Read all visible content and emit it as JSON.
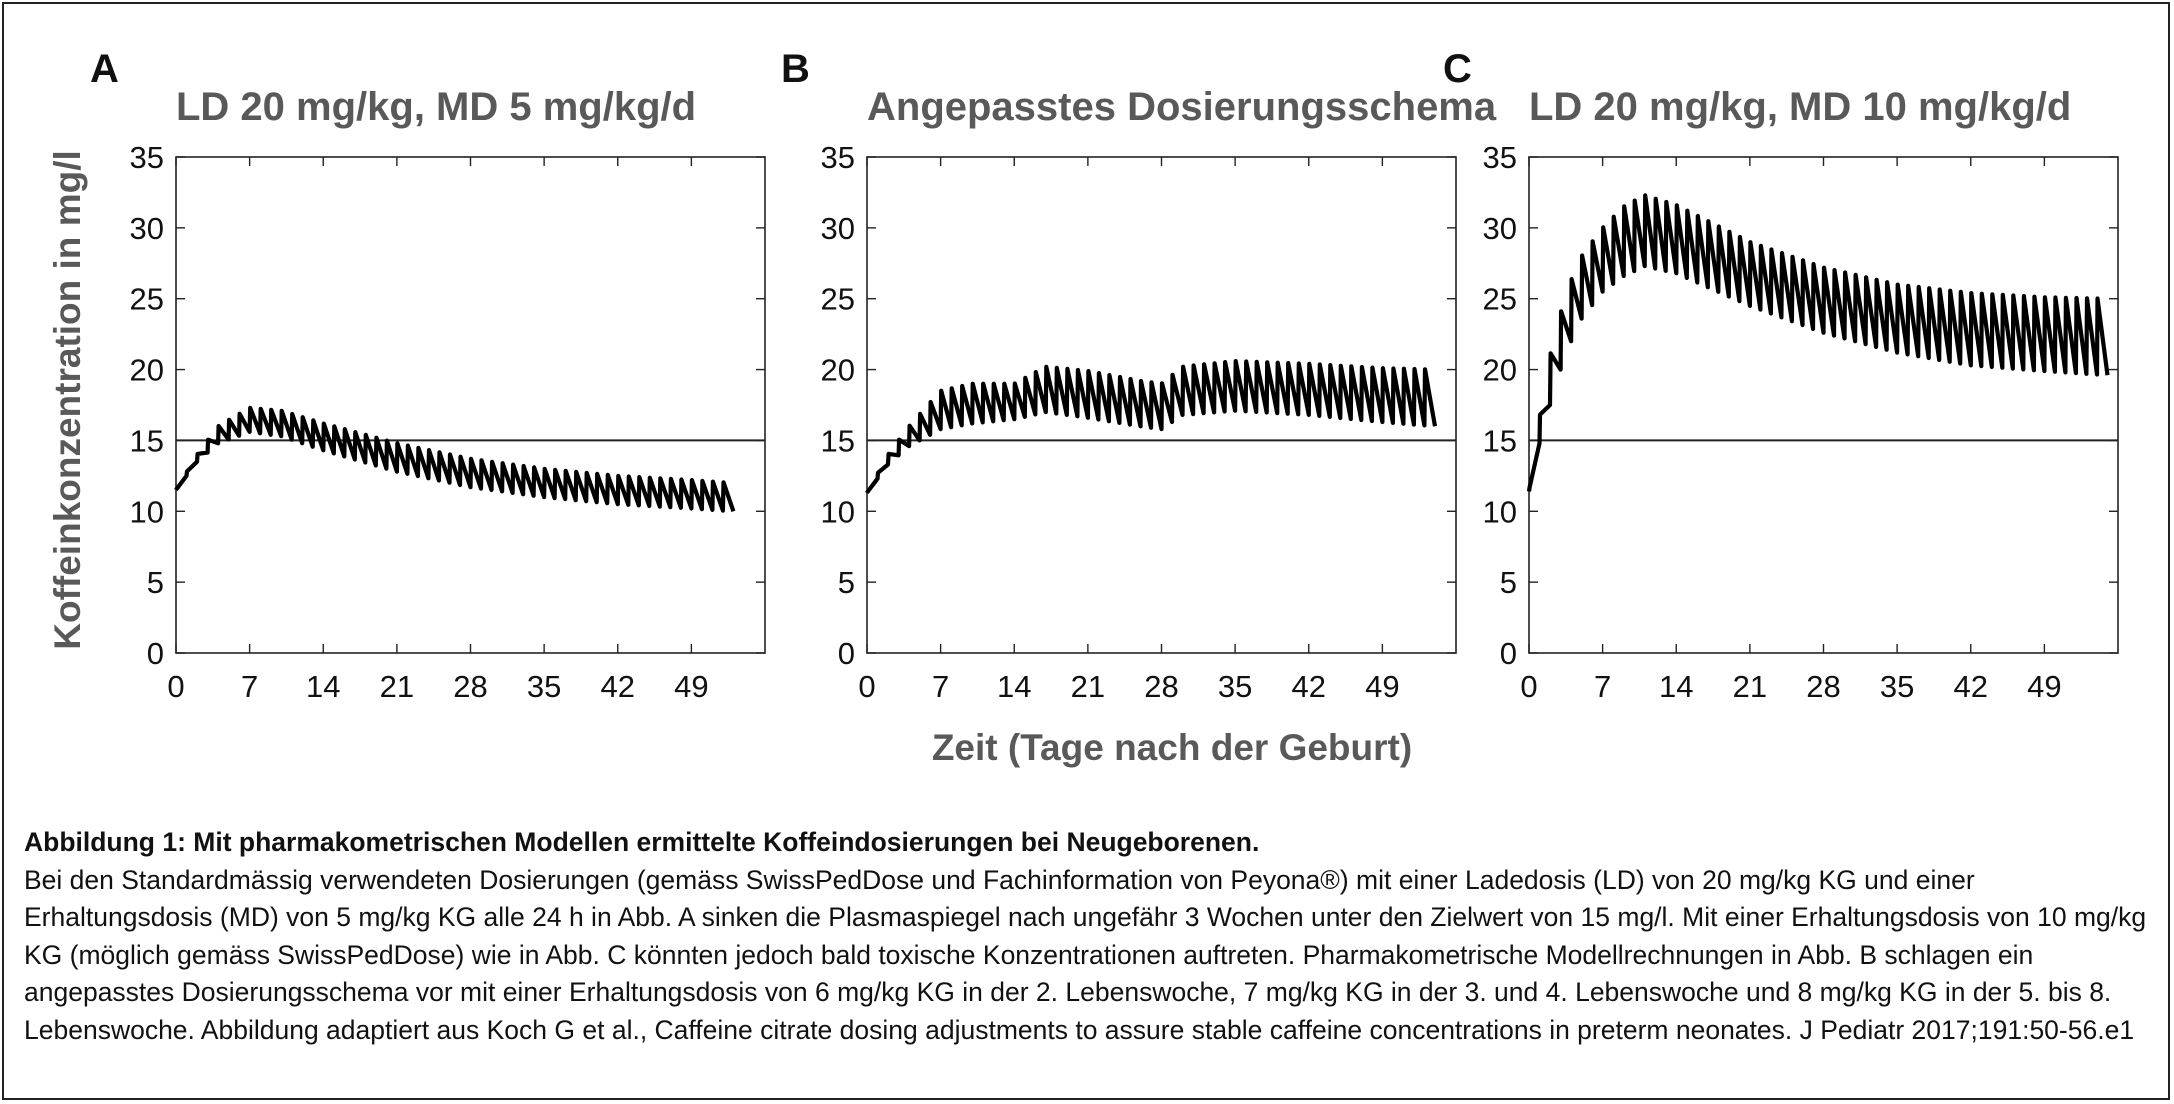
{
  "figure": {
    "ylabel": "Koffeinkonzentration in mg/l",
    "xlabel": "Zeit (Tage nach der Geburt)"
  },
  "caption": {
    "title": "Abbildung 1: Mit pharmakometrischen Modellen ermittelte Koffeindosierungen bei Neugeborenen.",
    "text": "Bei den Standardmässig verwendeten Dosierungen (gemäss SwissPedDose und Fachinformation von Peyona®) mit einer Ladedosis (LD) von 20 mg/kg KG und einer Erhaltungsdosis (MD) von 5 mg/kg KG alle 24 h in Abb. A sinken die Plasmaspiegel nach ungefähr 3 Wochen unter den Zielwert von 15 mg/l. Mit einer Erhaltungsdosis von 10 mg/kg KG (möglich gemäss SwissPedDose) wie in Abb. C könnten jedoch bald toxische Konzentrationen auftreten. Pharmakometrische Modellrechnungen in Abb. B schlagen ein angepasstes Dosierungsschema vor mit einer Erhaltungsdosis von 6 mg/kg KG in der 2. Lebenswoche, 7 mg/kg KG in der 3. und 4. Lebenswoche und 8 mg/kg KG in der 5. bis 8. Lebenswoche. Abbildung adaptiert aus Koch G et al., Caffeine citrate dosing adjustments to assure stable caffeine concentrations in preterm neonates. J Pediatr 2017;191:50-56.e1"
  },
  "chart_data": [
    {
      "type": "line",
      "panel": "A",
      "title": "LD 20 mg/kg, MD 5 mg/kg/d",
      "xlim": [
        0,
        56
      ],
      "ylim": [
        0,
        35
      ],
      "xticks": [
        0,
        7,
        14,
        21,
        28,
        35,
        42,
        49
      ],
      "yticks": [
        0,
        5,
        10,
        15,
        20,
        25,
        30,
        35
      ],
      "reference_line": 15,
      "dose_days": 53,
      "start_level": 11.5,
      "trough_points": [
        [
          0,
          11.5
        ],
        [
          2,
          13.5
        ],
        [
          4,
          14.8
        ],
        [
          7,
          15.6
        ],
        [
          10,
          15.3
        ],
        [
          14,
          14.3
        ],
        [
          21,
          12.8
        ],
        [
          28,
          11.7
        ],
        [
          35,
          11.0
        ],
        [
          42,
          10.5
        ],
        [
          49,
          10.2
        ],
        [
          53,
          10.0
        ]
      ],
      "peak_points": [
        [
          0,
          11.5
        ],
        [
          2,
          14.0
        ],
        [
          4,
          16.0
        ],
        [
          7,
          17.3
        ],
        [
          10,
          17.1
        ],
        [
          14,
          16.2
        ],
        [
          21,
          14.8
        ],
        [
          28,
          13.7
        ],
        [
          35,
          13.0
        ],
        [
          42,
          12.5
        ],
        [
          49,
          12.2
        ],
        [
          53,
          12.0
        ]
      ]
    },
    {
      "type": "line",
      "panel": "B",
      "title": "Angepasstes Dosierungsschema",
      "xlim": [
        0,
        56
      ],
      "ylim": [
        0,
        35
      ],
      "xticks": [
        0,
        7,
        14,
        21,
        28,
        35,
        42,
        49
      ],
      "yticks": [
        0,
        5,
        10,
        15,
        20,
        25,
        30,
        35
      ],
      "reference_line": 15,
      "dose_days": 54,
      "start_level": 11.3,
      "trough_points": [
        [
          0,
          11.3
        ],
        [
          2,
          13.3
        ],
        [
          4,
          14.6
        ],
        [
          7,
          15.8
        ],
        [
          10,
          16.2
        ],
        [
          14,
          16.5
        ],
        [
          17,
          17.0
        ],
        [
          21,
          16.6
        ],
        [
          26,
          16.0
        ],
        [
          28,
          15.8
        ],
        [
          30,
          16.8
        ],
        [
          35,
          17.1
        ],
        [
          42,
          16.8
        ],
        [
          49,
          16.3
        ],
        [
          54,
          16.0
        ]
      ],
      "peak_points": [
        [
          0,
          11.3
        ],
        [
          2,
          14.0
        ],
        [
          4,
          16.0
        ],
        [
          7,
          18.5
        ],
        [
          10,
          19.0
        ],
        [
          14,
          19.0
        ],
        [
          17,
          20.2
        ],
        [
          21,
          19.9
        ],
        [
          26,
          19.2
        ],
        [
          28,
          19.0
        ],
        [
          30,
          20.2
        ],
        [
          35,
          20.6
        ],
        [
          42,
          20.4
        ],
        [
          49,
          20.1
        ],
        [
          54,
          20.0
        ]
      ]
    },
    {
      "type": "line",
      "panel": "C",
      "title": "LD 20 mg/kg, MD 10 mg/kg/d",
      "xlim": [
        0,
        56
      ],
      "ylim": [
        0,
        35
      ],
      "xticks": [
        0,
        7,
        14,
        21,
        28,
        35,
        42,
        49
      ],
      "yticks": [
        0,
        5,
        10,
        15,
        20,
        25,
        30,
        35
      ],
      "reference_line": 15,
      "dose_days": 55,
      "start_level": 11.4,
      "trough_points": [
        [
          0,
          11.4
        ],
        [
          1,
          14.8
        ],
        [
          2,
          17.5
        ],
        [
          3,
          20.0
        ],
        [
          4,
          22.0
        ],
        [
          5,
          23.6
        ],
        [
          7,
          25.5
        ],
        [
          9,
          26.6
        ],
        [
          11,
          27.3
        ],
        [
          14,
          26.8
        ],
        [
          21,
          24.5
        ],
        [
          28,
          22.6
        ],
        [
          35,
          21.2
        ],
        [
          42,
          20.3
        ],
        [
          49,
          19.9
        ],
        [
          55,
          19.6
        ]
      ],
      "peak_points": [
        [
          0,
          11.4
        ],
        [
          1,
          16.6
        ],
        [
          2,
          21.0
        ],
        [
          3,
          24.0
        ],
        [
          4,
          26.3
        ],
        [
          5,
          28.0
        ],
        [
          7,
          30.0
        ],
        [
          9,
          31.5
        ],
        [
          11,
          32.3
        ],
        [
          14,
          31.6
        ],
        [
          21,
          29.0
        ],
        [
          28,
          27.2
        ],
        [
          35,
          26.0
        ],
        [
          42,
          25.4
        ],
        [
          49,
          25.1
        ],
        [
          55,
          25.0
        ]
      ]
    }
  ]
}
